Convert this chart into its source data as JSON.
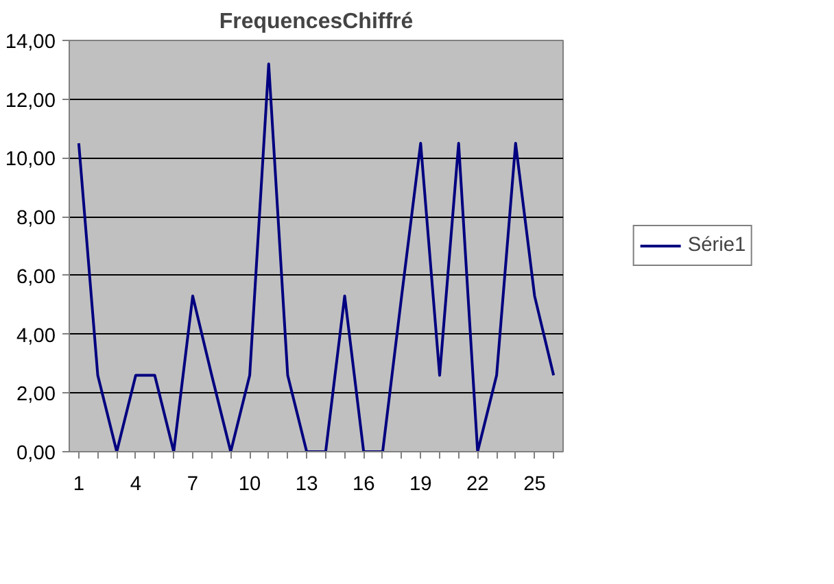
{
  "chart_data": {
    "type": "line",
    "title": "FrequencesChiffré",
    "categories": [
      "1",
      null,
      null,
      "4",
      null,
      null,
      "7",
      null,
      null,
      "10",
      null,
      null,
      "13",
      null,
      null,
      "16",
      null,
      null,
      "19",
      null,
      null,
      "22",
      null,
      null,
      "25",
      null
    ],
    "series": [
      {
        "name": "Série1",
        "color": "#000080",
        "values": [
          10.5,
          2.6,
          0,
          2.6,
          2.6,
          0,
          5.3,
          2.6,
          0,
          2.6,
          13.2,
          2.6,
          0,
          0,
          5.3,
          0,
          0,
          5.3,
          10.5,
          2.6,
          10.5,
          0,
          2.6,
          10.5,
          5.3,
          2.6
        ]
      }
    ],
    "ylim": [
      0,
      14
    ],
    "yticks": [
      {
        "value": 0,
        "label": "0,00"
      },
      {
        "value": 2,
        "label": "2,00"
      },
      {
        "value": 4,
        "label": "4,00"
      },
      {
        "value": 6,
        "label": "6,00"
      },
      {
        "value": 8,
        "label": "8,00"
      },
      {
        "value": 10,
        "label": "10,00"
      },
      {
        "value": 12,
        "label": "12,00"
      },
      {
        "value": 14,
        "label": "14,00"
      }
    ],
    "grid": "y",
    "legend": "right",
    "marker": "none",
    "line_style": "solid"
  }
}
